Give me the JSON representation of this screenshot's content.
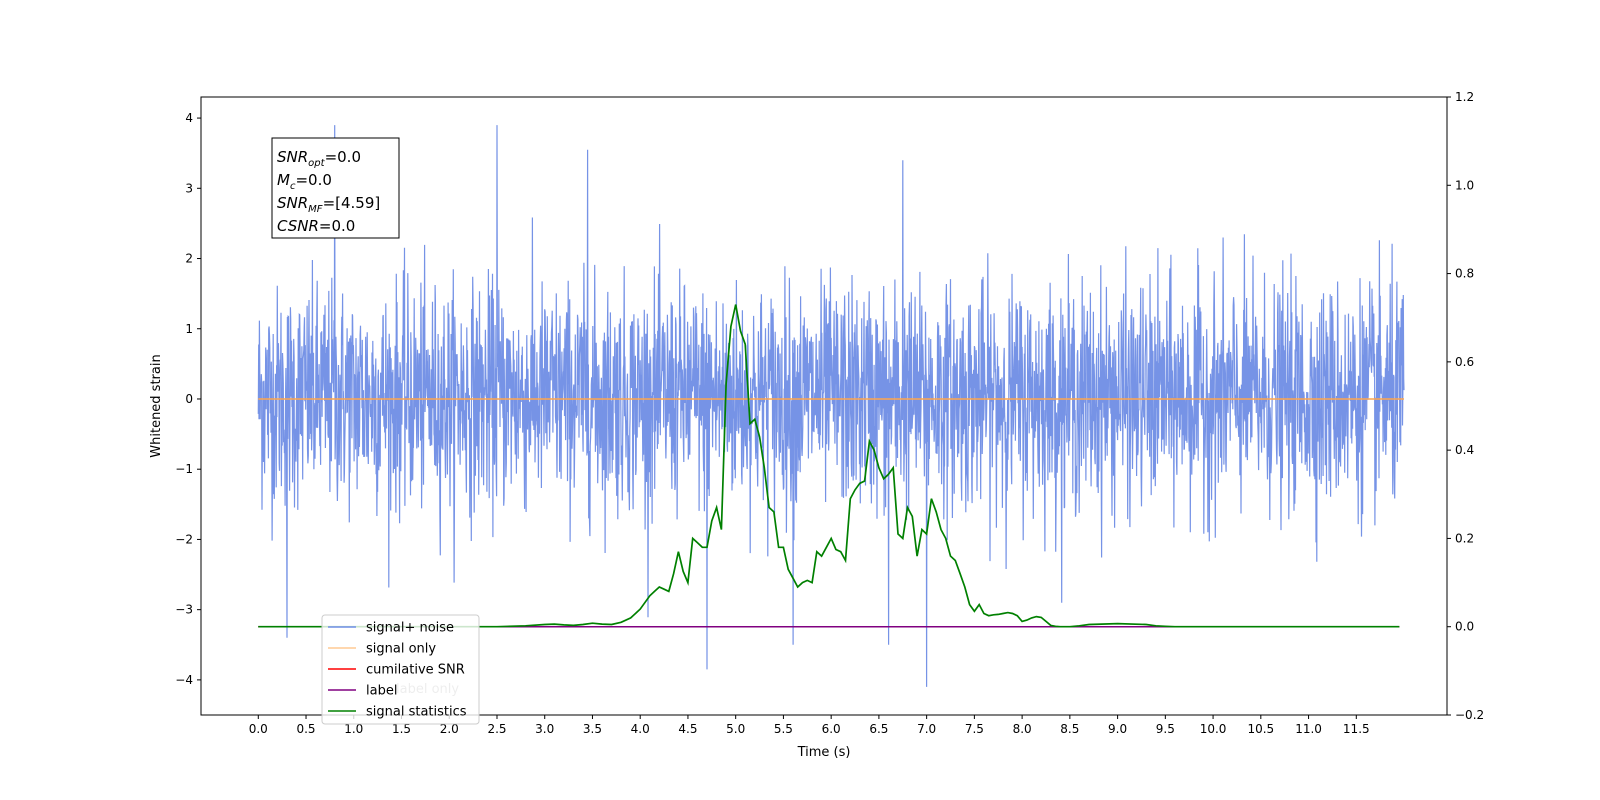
{
  "chart_data": {
    "type": "line",
    "title": "",
    "xlabel": "Time (s)",
    "ylabel": "Whitened strain",
    "xlim": [
      -0.6,
      12.45
    ],
    "ylim": [
      -4.5,
      4.3
    ],
    "y2lim": [
      -0.2,
      1.2
    ],
    "x_ticks": [
      0.0,
      0.5,
      1.0,
      1.5,
      2.0,
      2.5,
      3.0,
      3.5,
      4.0,
      4.5,
      5.0,
      5.5,
      6.0,
      6.5,
      7.0,
      7.5,
      8.0,
      8.5,
      9.0,
      9.5,
      10.0,
      10.5,
      11.0,
      11.5
    ],
    "x_tick_labels": [
      "0.0",
      "0.5",
      "1.0",
      "1.5",
      "2.0",
      "2.5",
      "3.0",
      "3.5",
      "4.0",
      "4.5",
      "5.0",
      "5.5",
      "6.0",
      "6.5",
      "7.0",
      "7.5",
      "8.0",
      "8.5",
      "9.0",
      "9.5",
      "10.0",
      "10.5",
      "11.0",
      "11.5"
    ],
    "y_ticks": [
      -4,
      -3,
      -2,
      -1,
      0,
      1,
      2,
      3,
      4
    ],
    "y_tick_labels": [
      "−4",
      "−3",
      "−2",
      "−1",
      "0",
      "1",
      "2",
      "3",
      "4"
    ],
    "y2_ticks": [
      -0.2,
      0.0,
      0.2,
      0.4,
      0.6,
      0.8,
      1.0,
      1.2
    ],
    "y2_tick_labels": [
      "−0.2",
      "0.0",
      "0.2",
      "0.4",
      "0.6",
      "0.8",
      "1.0",
      "1.2"
    ],
    "grid": false,
    "legend_position": "bottom-left",
    "colors": {
      "signal_noise": "#6f8de5",
      "signal_only": "#ffa64d",
      "cumulative_snr": "#ff0000",
      "label": "#800080",
      "signal_statistics": "#008000"
    },
    "series": [
      {
        "name": "signal+ noise",
        "axis": "left",
        "color": "#6f8de5",
        "x_range": [
          0.0,
          12.0
        ],
        "sample_rate_hz": 256,
        "envelope": {
          "typical_min": -1.9,
          "typical_max": 2.3,
          "notable_peaks": [
            {
              "x": 0.8,
              "y": 3.9
            },
            {
              "x": 2.5,
              "y": 3.9
            },
            {
              "x": 3.45,
              "y": 3.55
            },
            {
              "x": 6.75,
              "y": 3.4
            }
          ],
          "notable_troughs": [
            {
              "x": 0.3,
              "y": -3.4
            },
            {
              "x": 4.7,
              "y": -3.85
            },
            {
              "x": 5.6,
              "y": -3.5
            },
            {
              "x": 6.6,
              "y": -3.5
            },
            {
              "x": 7.0,
              "y": -4.1
            }
          ]
        }
      },
      {
        "name": "signal only",
        "axis": "left",
        "color": "#ffa64d",
        "x": [
          0.0,
          12.0
        ],
        "y": [
          0.0,
          0.0
        ]
      },
      {
        "name": "cumilative SNR",
        "axis": "right",
        "color": "#ff0000",
        "x": [
          0.0,
          11.95
        ],
        "y": [
          0.0,
          0.0
        ]
      },
      {
        "name": "label",
        "axis": "right",
        "color": "#800080",
        "x": [
          0.0,
          11.95
        ],
        "y": [
          0.0,
          0.0
        ]
      },
      {
        "name": "signal statistics",
        "axis": "right",
        "color": "#008000",
        "x": [
          0.0,
          2.5,
          2.8,
          3.0,
          3.1,
          3.2,
          3.3,
          3.4,
          3.5,
          3.6,
          3.7,
          3.8,
          3.9,
          4.0,
          4.1,
          4.15,
          4.2,
          4.25,
          4.3,
          4.35,
          4.4,
          4.45,
          4.5,
          4.55,
          4.6,
          4.65,
          4.7,
          4.75,
          4.8,
          4.85,
          4.9,
          4.95,
          5.0,
          5.05,
          5.1,
          5.15,
          5.2,
          5.25,
          5.3,
          5.35,
          5.4,
          5.45,
          5.5,
          5.55,
          5.6,
          5.65,
          5.7,
          5.75,
          5.8,
          5.85,
          5.9,
          5.95,
          6.0,
          6.05,
          6.1,
          6.15,
          6.2,
          6.25,
          6.3,
          6.35,
          6.4,
          6.45,
          6.5,
          6.55,
          6.6,
          6.65,
          6.7,
          6.75,
          6.8,
          6.85,
          6.9,
          6.95,
          7.0,
          7.05,
          7.1,
          7.15,
          7.2,
          7.25,
          7.3,
          7.35,
          7.4,
          7.45,
          7.5,
          7.55,
          7.6,
          7.65,
          7.7,
          7.75,
          7.8,
          7.85,
          7.9,
          7.95,
          8.0,
          8.05,
          8.1,
          8.15,
          8.2,
          8.25,
          8.3,
          8.35,
          8.4,
          8.5,
          8.6,
          8.7,
          9.0,
          9.3,
          9.4,
          9.5,
          9.6,
          9.7,
          10.0,
          10.5,
          11.95
        ],
        "y": [
          0.0,
          0.0,
          0.002,
          0.005,
          0.006,
          0.004,
          0.003,
          0.005,
          0.008,
          0.006,
          0.005,
          0.01,
          0.02,
          0.04,
          0.07,
          0.08,
          0.09,
          0.085,
          0.08,
          0.12,
          0.17,
          0.125,
          0.1,
          0.2,
          0.19,
          0.18,
          0.18,
          0.24,
          0.27,
          0.22,
          0.55,
          0.68,
          0.73,
          0.67,
          0.64,
          0.46,
          0.47,
          0.43,
          0.36,
          0.27,
          0.26,
          0.18,
          0.18,
          0.13,
          0.11,
          0.09,
          0.1,
          0.105,
          0.1,
          0.17,
          0.16,
          0.18,
          0.2,
          0.175,
          0.17,
          0.15,
          0.29,
          0.31,
          0.325,
          0.33,
          0.42,
          0.4,
          0.36,
          0.335,
          0.345,
          0.36,
          0.21,
          0.2,
          0.27,
          0.25,
          0.16,
          0.22,
          0.21,
          0.29,
          0.26,
          0.22,
          0.2,
          0.16,
          0.15,
          0.12,
          0.09,
          0.05,
          0.035,
          0.05,
          0.03,
          0.025,
          0.027,
          0.028,
          0.03,
          0.032,
          0.03,
          0.025,
          0.012,
          0.015,
          0.02,
          0.023,
          0.021,
          0.012,
          0.003,
          0.001,
          0.0,
          0.0,
          0.002,
          0.005,
          0.007,
          0.005,
          0.002,
          0.001,
          0.0,
          0.0,
          0.0,
          0.0,
          0.0
        ]
      }
    ],
    "annotation_box": {
      "lines": [
        {
          "base": "SNR",
          "sub": "opt",
          "rest": "=0.0"
        },
        {
          "base": "M",
          "sub": "c",
          "rest": "=0.0"
        },
        {
          "base": "SNR",
          "sub": "MF",
          "rest": "=[4.59]"
        },
        {
          "base": "CSNR",
          "sub": "",
          "rest": "=0.0"
        }
      ]
    },
    "legend_labels": [
      "signal+ noise",
      "signal only",
      "cumilative SNR",
      "label",
      "signal statistics"
    ],
    "hidden_legend_text": "label only"
  }
}
